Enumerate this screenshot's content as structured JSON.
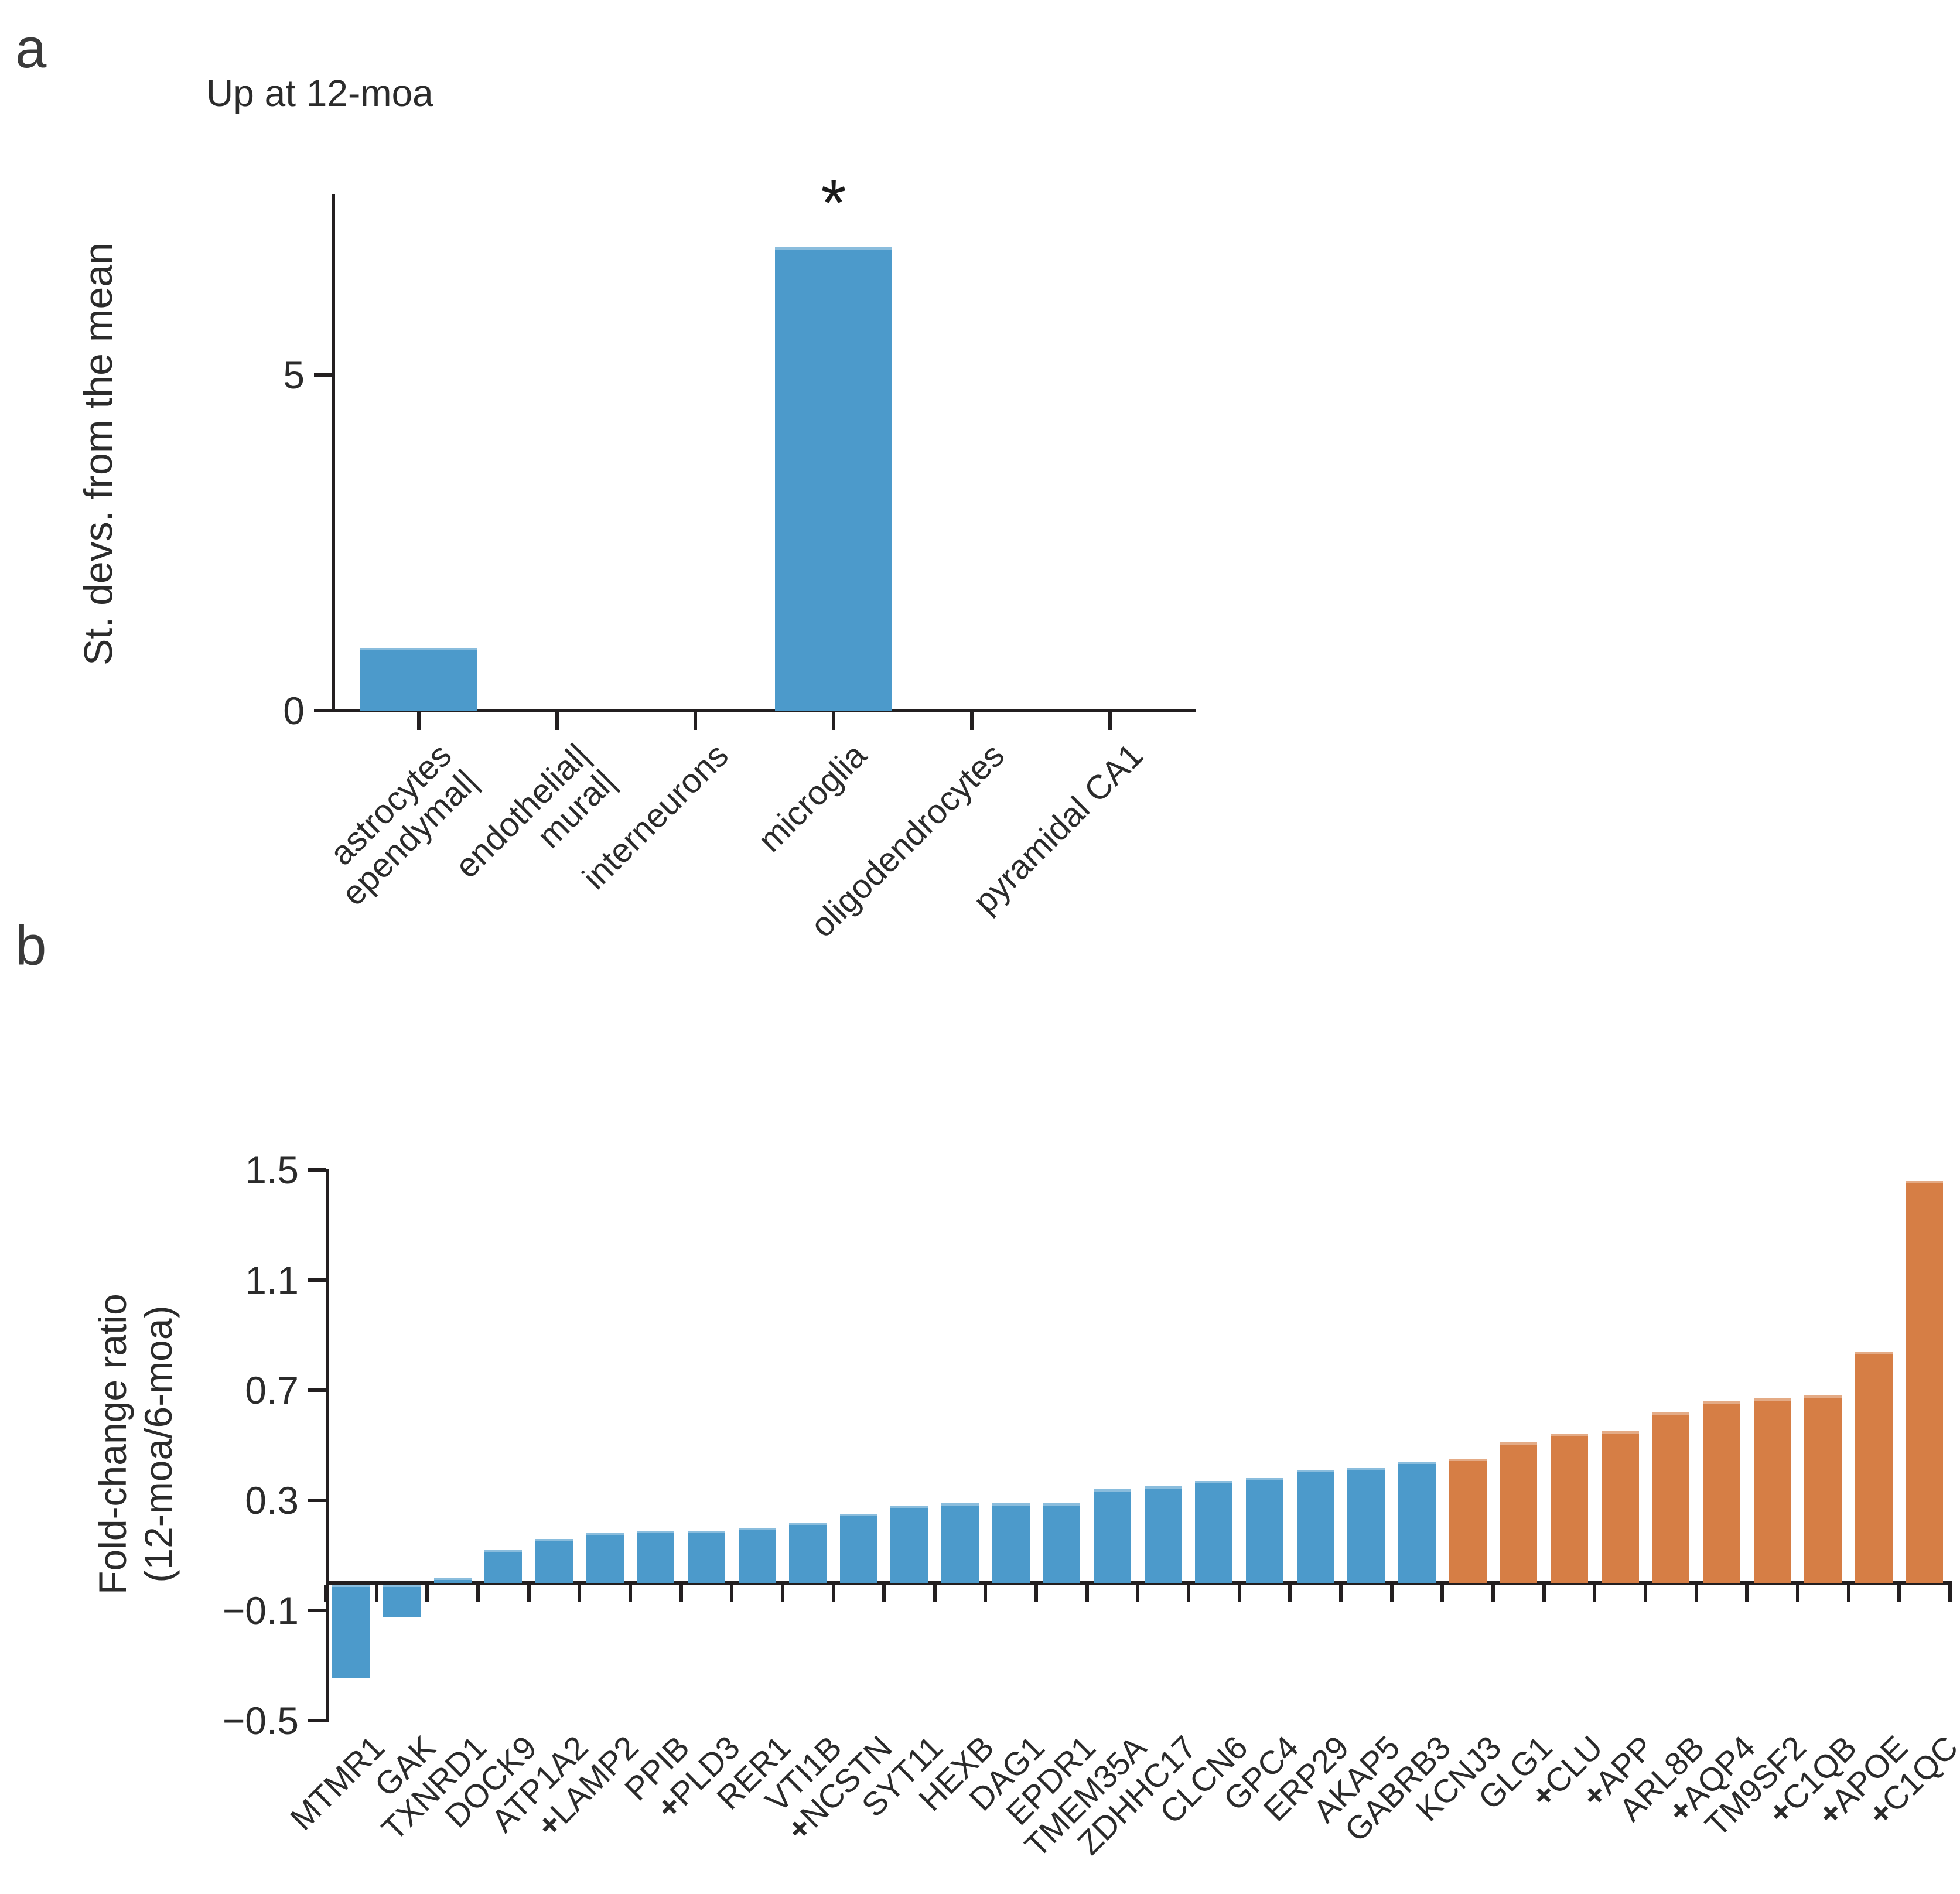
{
  "figure": {
    "panel_a": {
      "label": "a",
      "title": "Up at 12-moa",
      "ylabel": "St. devs. from the mean",
      "significance_marker": "*"
    },
    "panel_b": {
      "label": "b",
      "ylabel_line1": "Fold-change ratio",
      "ylabel_line2": "(12-moa/6-moa)"
    }
  },
  "colors": {
    "blue_bar": "#4c9acb",
    "orange_bar": "#d67e45",
    "axis": "#231f20",
    "text": "#2b2b2b"
  },
  "chart_data": [
    {
      "id": "panel_a",
      "type": "bar",
      "title": "Up at 12-moa",
      "ylabel": "St. devs. from the mean",
      "ylim": [
        0,
        7.7
      ],
      "yticks": [
        0,
        5
      ],
      "grid": false,
      "legend": null,
      "bar_color": "#4c9acb",
      "bars": [
        {
          "name": "astrocytes ependymal",
          "label_lines": [
            "astrocytes",
            "ependymal|"
          ],
          "value": 0.93,
          "annotation": null
        },
        {
          "name": "endothelial mural",
          "label_lines": [
            "endothelial|",
            "mural|"
          ],
          "value": 0,
          "annotation": null
        },
        {
          "name": "interneurons",
          "label_lines": [
            "interneurons"
          ],
          "value": 0,
          "annotation": null
        },
        {
          "name": "microglia",
          "label_lines": [
            "microglia"
          ],
          "value": 6.9,
          "annotation": "*"
        },
        {
          "name": "oligodendrocytes",
          "label_lines": [
            "oligodendrocytes"
          ],
          "value": 0,
          "annotation": null
        },
        {
          "name": "pyramidal CA1",
          "label_lines": [
            "pyramidal CA1"
          ],
          "value": 0,
          "annotation": null
        }
      ]
    },
    {
      "id": "panel_b",
      "type": "bar",
      "ylabel": "Fold-change ratio (12-moa/6-moa)",
      "ylim": [
        -0.5,
        1.5
      ],
      "yticks": [
        1.5,
        1.1,
        0.7,
        0.3,
        -0.1,
        -0.5
      ],
      "grid": false,
      "legend": null,
      "group_colors": {
        "blue": "#4c9acb",
        "orange": "#d67e45"
      },
      "marker_meaning": "plus-cross prefix on gene label",
      "bars": [
        {
          "gene": "MTMR1",
          "value": -0.34,
          "marked": false,
          "group": "blue"
        },
        {
          "gene": "GAK",
          "value": -0.12,
          "marked": false,
          "group": "blue"
        },
        {
          "gene": "TXNRD1",
          "value": 0.02,
          "marked": false,
          "group": "blue"
        },
        {
          "gene": "DOCK9",
          "value": 0.12,
          "marked": false,
          "group": "blue"
        },
        {
          "gene": "ATP1A2",
          "value": 0.16,
          "marked": false,
          "group": "blue"
        },
        {
          "gene": "LAMP2",
          "value": 0.18,
          "marked": true,
          "group": "blue"
        },
        {
          "gene": "PPIB",
          "value": 0.19,
          "marked": false,
          "group": "blue"
        },
        {
          "gene": "PLD3",
          "value": 0.19,
          "marked": true,
          "group": "blue"
        },
        {
          "gene": "RER1",
          "value": 0.2,
          "marked": false,
          "group": "blue"
        },
        {
          "gene": "VTI1B",
          "value": 0.22,
          "marked": false,
          "group": "blue"
        },
        {
          "gene": "NCSTN",
          "value": 0.25,
          "marked": true,
          "group": "blue"
        },
        {
          "gene": "SYT11",
          "value": 0.28,
          "marked": false,
          "group": "blue"
        },
        {
          "gene": "HEXB",
          "value": 0.29,
          "marked": false,
          "group": "blue"
        },
        {
          "gene": "DAG1",
          "value": 0.29,
          "marked": false,
          "group": "blue"
        },
        {
          "gene": "EPDR1",
          "value": 0.29,
          "marked": false,
          "group": "blue"
        },
        {
          "gene": "TMEM35A",
          "value": 0.34,
          "marked": false,
          "group": "blue"
        },
        {
          "gene": "ZDHHC17",
          "value": 0.35,
          "marked": false,
          "group": "blue"
        },
        {
          "gene": "CLCN6",
          "value": 0.37,
          "marked": false,
          "group": "blue"
        },
        {
          "gene": "GPC4",
          "value": 0.38,
          "marked": false,
          "group": "blue"
        },
        {
          "gene": "ERP29",
          "value": 0.41,
          "marked": false,
          "group": "blue"
        },
        {
          "gene": "AKAP5",
          "value": 0.42,
          "marked": false,
          "group": "blue"
        },
        {
          "gene": "GABRB3",
          "value": 0.44,
          "marked": false,
          "group": "blue"
        },
        {
          "gene": "KCNJ3",
          "value": 0.45,
          "marked": false,
          "group": "orange"
        },
        {
          "gene": "GLG1",
          "value": 0.51,
          "marked": false,
          "group": "orange"
        },
        {
          "gene": "CLU",
          "value": 0.54,
          "marked": true,
          "group": "orange"
        },
        {
          "gene": "APP",
          "value": 0.55,
          "marked": true,
          "group": "orange"
        },
        {
          "gene": "ARL8B",
          "value": 0.62,
          "marked": false,
          "group": "orange"
        },
        {
          "gene": "AQP4",
          "value": 0.66,
          "marked": true,
          "group": "orange"
        },
        {
          "gene": "TM9SF2",
          "value": 0.67,
          "marked": false,
          "group": "orange"
        },
        {
          "gene": "C1QB",
          "value": 0.68,
          "marked": true,
          "group": "orange"
        },
        {
          "gene": "APOE",
          "value": 0.84,
          "marked": true,
          "group": "orange"
        },
        {
          "gene": "C1QC",
          "value": 1.46,
          "marked": true,
          "group": "orange"
        }
      ]
    }
  ]
}
